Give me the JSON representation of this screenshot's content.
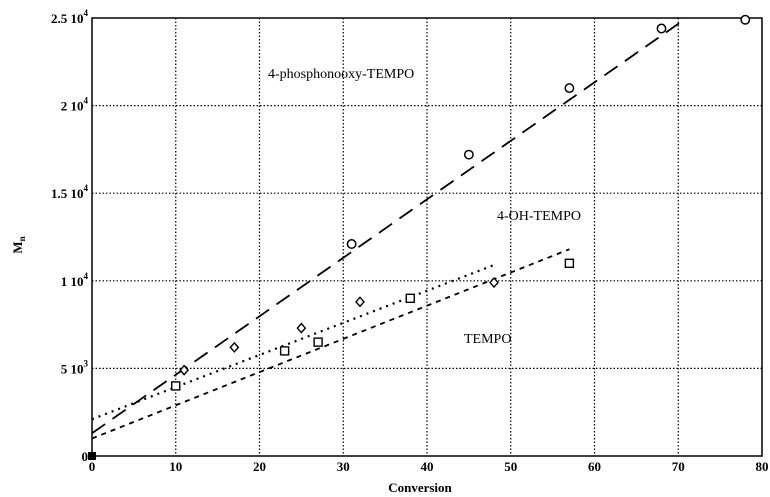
{
  "chart_data": {
    "type": "scatter",
    "title": "",
    "xlabel": "Conversion",
    "ylabel": "M n",
    "xlim": [
      0,
      80
    ],
    "ylim": [
      0,
      25000
    ],
    "grid": true,
    "x_ticks": [
      0,
      10,
      20,
      30,
      40,
      50,
      60,
      70,
      80
    ],
    "x_tick_labels": [
      "0",
      "10",
      "20",
      "30",
      "40",
      "50",
      "60",
      "70",
      "80"
    ],
    "y_ticks": [
      0,
      5000,
      10000,
      15000,
      20000,
      25000
    ],
    "y_tick_labels": [
      {
        "mantissa": "0",
        "exp": ""
      },
      {
        "mantissa": "5 10",
        "exp": "3"
      },
      {
        "mantissa": "1 10",
        "exp": "4"
      },
      {
        "mantissa": "1.5 10",
        "exp": "4"
      },
      {
        "mantissa": "2 10",
        "exp": "4"
      },
      {
        "mantissa": "2.5 10",
        "exp": "4"
      }
    ],
    "series": [
      {
        "name": "4-phosphonooxy-TEMPO",
        "marker": "circle",
        "points": [
          [
            0,
            0
          ],
          [
            31,
            12100
          ],
          [
            45,
            17200
          ],
          [
            57,
            21000
          ],
          [
            68,
            24400
          ],
          [
            78,
            24900
          ]
        ],
        "fit": {
          "x1": 0,
          "y1": 1300,
          "x2": 71,
          "y2": 25000,
          "style": "long-dash"
        }
      },
      {
        "name": "4-OH-TEMPO",
        "marker": "diamond",
        "points": [
          [
            0,
            0
          ],
          [
            11,
            4900
          ],
          [
            17,
            6200
          ],
          [
            25,
            7300
          ],
          [
            32,
            8800
          ],
          [
            48,
            9900
          ]
        ],
        "fit": {
          "x1": 0,
          "y1": 2100,
          "x2": 48,
          "y2": 10900,
          "style": "dotted"
        }
      },
      {
        "name": "TEMPO",
        "marker": "square",
        "points": [
          [
            0,
            0
          ],
          [
            10,
            4000
          ],
          [
            23,
            6000
          ],
          [
            27,
            6500
          ],
          [
            38,
            9000
          ],
          [
            57,
            11000
          ]
        ],
        "fit": {
          "x1": 0,
          "y1": 1000,
          "x2": 57,
          "y2": 11800,
          "style": "short-dash"
        }
      }
    ],
    "annotations": [
      "4-phosphonooxy-TEMPO",
      "4-OH-TEMPO",
      "TEMPO"
    ]
  }
}
